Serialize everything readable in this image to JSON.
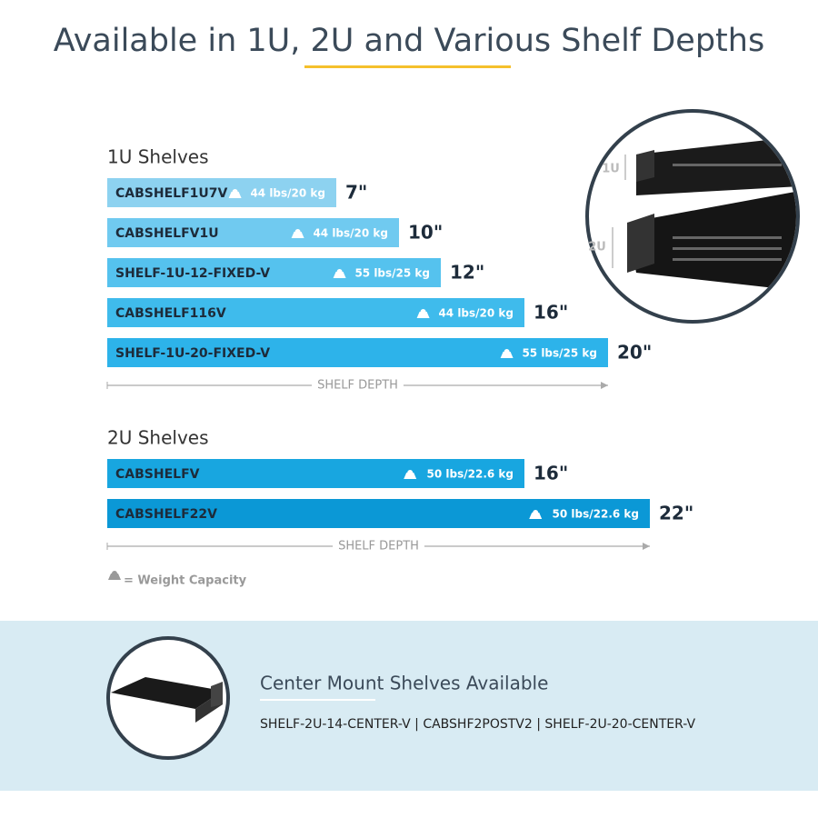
{
  "title": "Available in 1U, 2U and Various Shelf Depths",
  "groups": [
    {
      "title": "1U Shelves",
      "axis_label": "SHELF DEPTH",
      "items": [
        {
          "name": "CABSHELF1U7V",
          "weight": "44 lbs/20 kg",
          "depth": 7,
          "depth_label": "7\"",
          "color": "#8dd2f0"
        },
        {
          "name": "CABSHELFV1U",
          "weight": "44 lbs/20 kg",
          "depth": 10,
          "depth_label": "10\"",
          "color": "#70caf0"
        },
        {
          "name": "SHELF-1U-12-FIXED-V",
          "weight": "55 lbs/25 kg",
          "depth": 12,
          "depth_label": "12\"",
          "color": "#55c2ee"
        },
        {
          "name": "CABSHELF116V",
          "weight": "44 lbs/20 kg",
          "depth": 16,
          "depth_label": "16\"",
          "color": "#3fbbec"
        },
        {
          "name": "SHELF-1U-20-FIXED-V",
          "weight": "55 lbs/25 kg",
          "depth": 20,
          "depth_label": "20\"",
          "color": "#2db3ea"
        }
      ]
    },
    {
      "title": "2U Shelves",
      "axis_label": "SHELF DEPTH",
      "items": [
        {
          "name": "CABSHELFV",
          "weight": "50 lbs/22.6 kg",
          "depth": 16,
          "depth_label": "16\"",
          "color": "#18a6e0"
        },
        {
          "name": "CABSHELF22V",
          "weight": "50 lbs/22.6 kg",
          "depth": 22,
          "depth_label": "22\"",
          "color": "#0b98d6"
        }
      ]
    }
  ],
  "legend": "= Weight Capacity",
  "image_labels": [
    "1U",
    "2U"
  ],
  "footer": {
    "title": "Center Mount Shelves Available",
    "models": "SHELF-2U-14-CENTER-V | CABSHF2POSTV2 | SHELF-2U-20-CENTER-V"
  }
}
